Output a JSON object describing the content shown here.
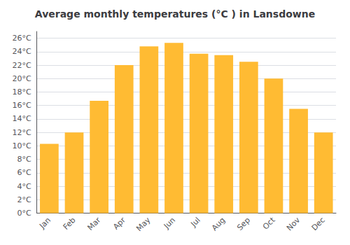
{
  "chart_data": {
    "type": "bar",
    "title": "Average monthly temperatures (°C ) in Lansdowne",
    "categories": [
      "Jan",
      "Feb",
      "Mar",
      "Apr",
      "May",
      "Jun",
      "Jul",
      "Aug",
      "Sep",
      "Oct",
      "Nov",
      "Dec"
    ],
    "values": [
      10.3,
      12.0,
      16.7,
      22.0,
      24.8,
      25.3,
      23.7,
      23.5,
      22.5,
      20.0,
      15.5,
      12.0
    ],
    "color": "#FFBB33",
    "ylim": [
      0,
      27
    ],
    "yticks": [
      {
        "value": 0,
        "label": "0°C"
      },
      {
        "value": 2,
        "label": "2°C"
      },
      {
        "value": 4,
        "label": "4°C"
      },
      {
        "value": 6,
        "label": "6°C"
      },
      {
        "value": 8,
        "label": "8°C"
      },
      {
        "value": 10,
        "label": "10°C"
      },
      {
        "value": 12,
        "label": "12°C"
      },
      {
        "value": 14,
        "label": "14°C"
      },
      {
        "value": 16,
        "label": "16°C"
      },
      {
        "value": 18,
        "label": "18°C"
      },
      {
        "value": 20,
        "label": "20°C"
      },
      {
        "value": 22,
        "label": "22°C"
      },
      {
        "value": 24,
        "label": "24°C"
      },
      {
        "value": 26,
        "label": "26°C"
      }
    ],
    "grid": true
  }
}
